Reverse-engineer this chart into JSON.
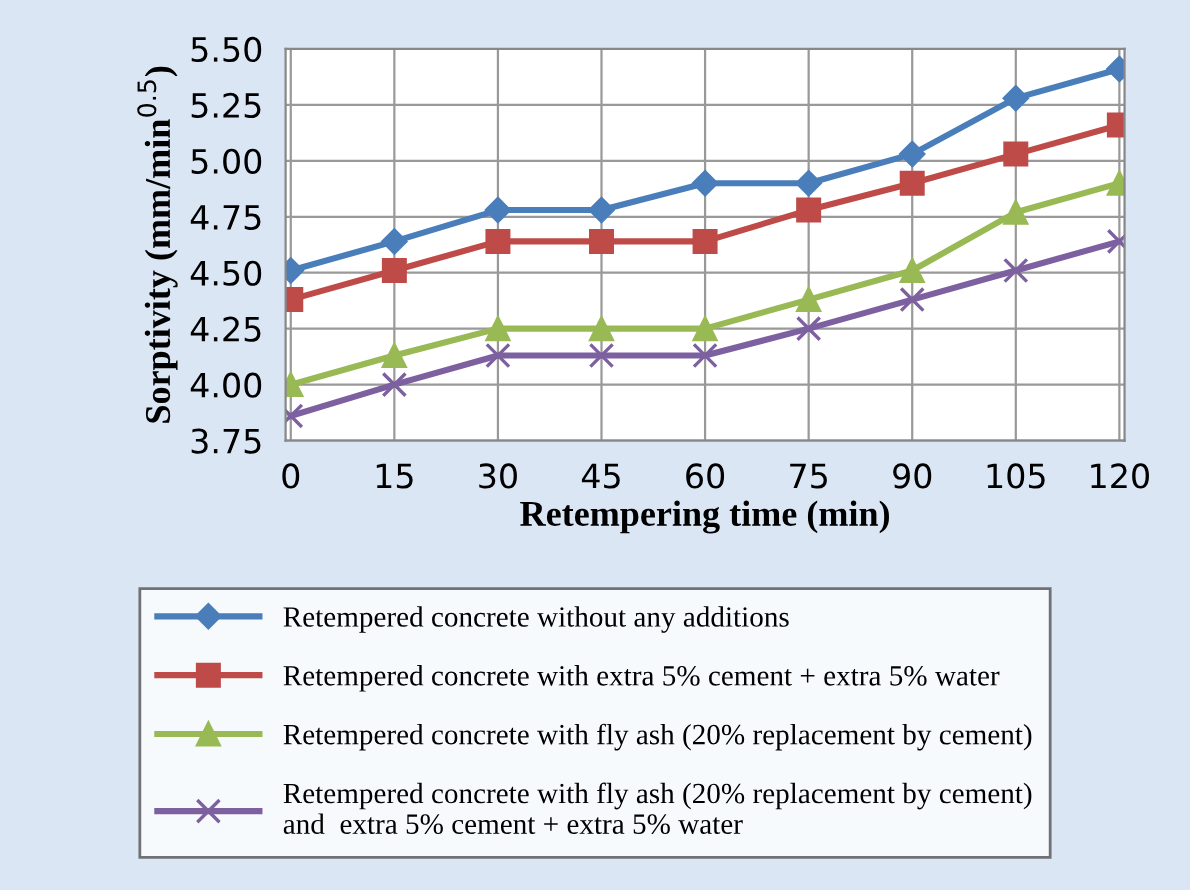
{
  "chart_data": {
    "type": "line",
    "xlabel": "Retempering time (min)",
    "ylabel": "Sorptivity (mm/min$^{0.5}$)",
    "categories": [
      "0",
      "15",
      "30",
      "45",
      "60",
      "75",
      "90",
      "105",
      "120"
    ],
    "ylim": [
      3.75,
      5.5
    ],
    "yticks": [
      {
        "value": 3.75,
        "label": "3.75"
      },
      {
        "value": 4.0,
        "label": "4.00"
      },
      {
        "value": 4.25,
        "label": "4.25"
      },
      {
        "value": 4.5,
        "label": "4.50"
      },
      {
        "value": 4.75,
        "label": "4.75"
      },
      {
        "value": 5.0,
        "label": "5.00"
      },
      {
        "value": 5.25,
        "label": "5.25"
      },
      {
        "value": 5.5,
        "label": "5.50"
      }
    ],
    "grid": true,
    "legend": "bottom",
    "series": [
      {
        "name": "Retempered concrete without any additions",
        "color": "#4a7ebb",
        "marker": "diamond",
        "values": [
          4.51,
          4.64,
          4.78,
          4.78,
          4.9,
          4.9,
          5.03,
          5.28,
          5.41
        ]
      },
      {
        "name": "Retempered concrete with extra 5% cement + extra 5% water",
        "color": "#be4b48",
        "marker": "square",
        "values": [
          4.38,
          4.51,
          4.64,
          4.64,
          4.64,
          4.78,
          4.9,
          5.03,
          5.16
        ]
      },
      {
        "name": "Retempered concrete with fly ash (20% replacement by cement)",
        "color": "#98b954",
        "marker": "triangle",
        "values": [
          4.0,
          4.13,
          4.25,
          4.25,
          4.25,
          4.38,
          4.51,
          4.77,
          4.9
        ]
      },
      {
        "name": "Retempered concrete with fly ash (20% replacement by cement)\nand  extra 5% cement + extra 5% water",
        "color": "#7d60a0",
        "marker": "cross",
        "values": [
          3.86,
          4.0,
          4.13,
          4.13,
          4.13,
          4.25,
          4.38,
          4.51,
          4.64
        ]
      }
    ]
  }
}
